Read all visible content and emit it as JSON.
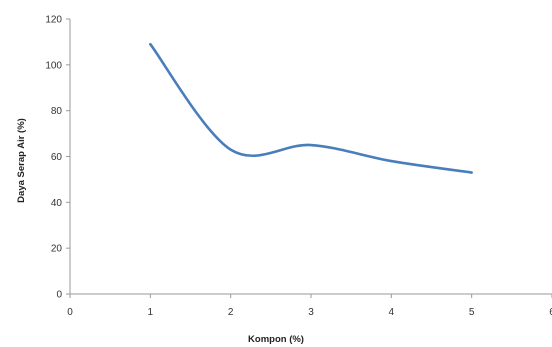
{
  "chart_data": {
    "type": "line",
    "title": "",
    "xlabel": "Kompon (%)",
    "ylabel": "Daya Serap Air (%)",
    "x_ticks": [
      "0",
      "1",
      "2",
      "3",
      "4",
      "5",
      "6"
    ],
    "y_ticks": [
      "0",
      "20",
      "40",
      "60",
      "80",
      "100",
      "120"
    ],
    "xlim": [
      0,
      6
    ],
    "ylim": [
      0,
      120
    ],
    "grid": false,
    "legend": "none",
    "smooth": true,
    "series": [
      {
        "x": [
          1,
          2,
          3,
          4,
          5
        ],
        "y": [
          109,
          63,
          65,
          58,
          53
        ],
        "color": "#4a7ebb"
      }
    ]
  }
}
